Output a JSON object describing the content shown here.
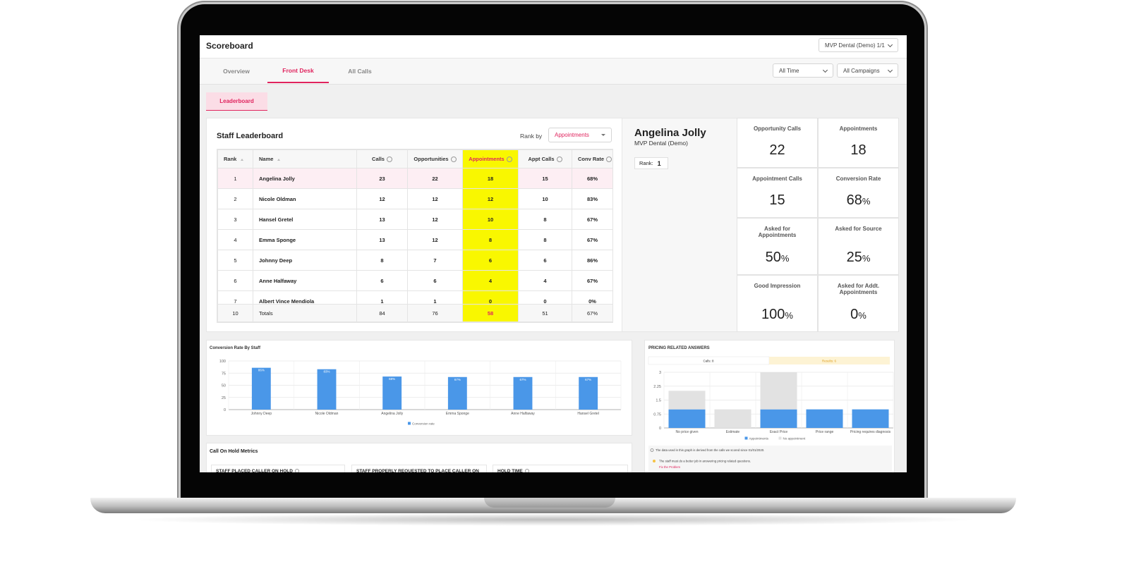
{
  "header": {
    "title": "Scoreboard",
    "account": "MVP Dental (Demo) 1/1"
  },
  "tabs": [
    "Overview",
    "Front Desk",
    "All Calls"
  ],
  "active_tab": 1,
  "filters": [
    "All Time",
    "All Campaigns"
  ],
  "subtab": "Leaderboard",
  "leaderboard": {
    "title": "Staff Leaderboard",
    "rank_by_label": "Rank by",
    "rank_by": "Appointments",
    "columns": [
      "Rank",
      "Name",
      "Calls",
      "Opportunities",
      "Appointments",
      "Appt Calls",
      "Conv Rate"
    ],
    "highlight_column": 4,
    "rows": [
      [
        1,
        "Angelina Jolly",
        23,
        22,
        18,
        15,
        "68%"
      ],
      [
        2,
        "Nicole Oldman",
        12,
        12,
        12,
        10,
        "83%"
      ],
      [
        3,
        "Hansel Gretel",
        13,
        12,
        10,
        8,
        "67%"
      ],
      [
        4,
        "Emma Sponge",
        13,
        12,
        8,
        8,
        "67%"
      ],
      [
        5,
        "Johnny Deep",
        8,
        7,
        6,
        6,
        "86%"
      ],
      [
        6,
        "Anne Halfaway",
        6,
        6,
        4,
        4,
        "67%"
      ],
      [
        7,
        "Albert Vince Mendiola",
        1,
        1,
        0,
        0,
        "0%"
      ]
    ],
    "totals": [
      10,
      "Totals",
      84,
      76,
      58,
      51,
      "67%"
    ]
  },
  "profile": {
    "name": "Angelina Jolly",
    "org": "MVP Dental (Demo)",
    "rank_label": "Rank:",
    "rank": 1
  },
  "stats": [
    {
      "label": "Opportunity Calls",
      "value": 22
    },
    {
      "label": "Appointments",
      "value": 18
    },
    {
      "label": "Appointment Calls",
      "value": 15
    },
    {
      "label": "Conversion Rate",
      "value": 68,
      "unit": "%"
    },
    {
      "label": "Asked for Appointments",
      "value": 50,
      "unit": "%"
    },
    {
      "label": "Asked for Source",
      "value": 25,
      "unit": "%"
    },
    {
      "label": "Good Impression",
      "value": 100,
      "unit": "%"
    },
    {
      "label": "Asked for Addt. Appointments",
      "value": 0,
      "unit": "%"
    }
  ],
  "conversion_chart": {
    "type": "bar",
    "title": "Conversion Rate By Staff",
    "categories": [
      "Johnny Deep",
      "Nicole Oldman",
      "Angelina Jolly",
      "Emma Sponge",
      "Anne Halfaway",
      "Hansel Gretel"
    ],
    "series": [
      {
        "name": "Conversion rate",
        "color": "#4a97e8",
        "values": [
          86,
          83,
          68,
          67,
          67,
          67
        ],
        "value_labels": [
          "86%",
          "83%",
          "68%",
          "67%",
          "67%",
          "67%"
        ]
      }
    ],
    "ylim": [
      0,
      100
    ],
    "yticks": [
      0,
      25,
      50,
      75,
      100
    ],
    "grid": true
  },
  "pricing_chart": {
    "type": "stacked_bar",
    "title": "PRICING RELATED ANSWERS",
    "tabs": [
      "Calls: 8",
      "Results: 6"
    ],
    "categories": [
      "No price given",
      "Estimate",
      "Exact Price",
      "Price range",
      "Pricing requires diagnosis"
    ],
    "series": [
      {
        "name": "Appointments",
        "color": "#4a97e8",
        "values": [
          1,
          0,
          1,
          1,
          1
        ]
      },
      {
        "name": "No appointment",
        "color": "#e2e2e2",
        "values": [
          1,
          1,
          2,
          0,
          0
        ]
      }
    ],
    "ylim": [
      0,
      3
    ],
    "yticks": [
      0,
      0.75,
      1.5,
      2.25,
      3
    ],
    "grid": true,
    "note": "The data used in this graph is derived from the calls we scored since 01/01/2020.",
    "tip": "The staff must do a better job in answering pricing related questions.",
    "action": "Fix the Problem"
  },
  "hold_metrics": {
    "title": "Call On Hold Metrics",
    "sections": [
      "STAFF PLACED CALLER ON HOLD",
      "STAFF PROPERLY REQUESTED TO PLACE CALLER ON HOLD",
      "HOLD TIME"
    ]
  }
}
